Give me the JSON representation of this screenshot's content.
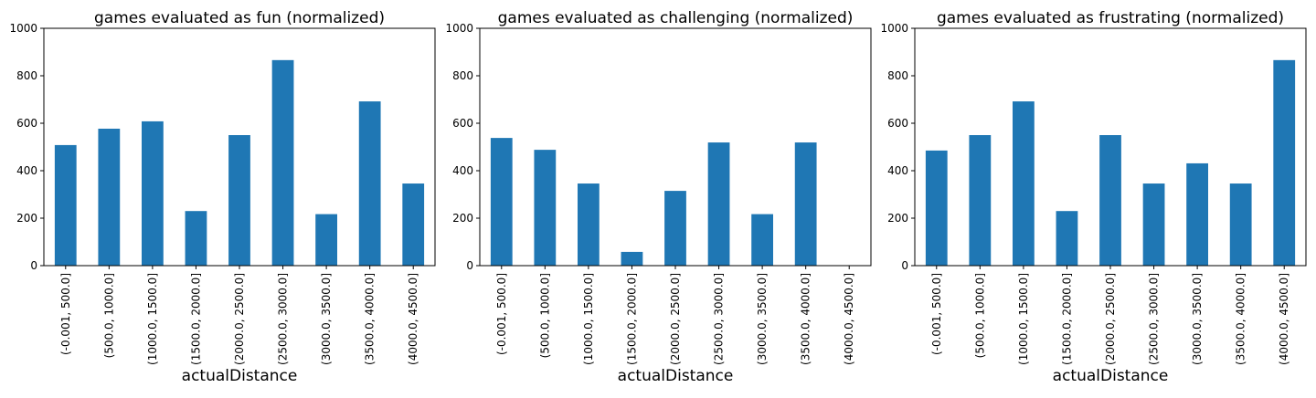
{
  "chart_data": [
    {
      "type": "bar",
      "title": "games evaluated as fun (normalized)",
      "xlabel": "actualDistance",
      "ylabel": "",
      "ylim": [
        0,
        1000
      ],
      "yticks": [
        "0",
        "200",
        "400",
        "600",
        "800",
        "1000"
      ],
      "categories": [
        "(-0.001, 500.0]",
        "(500.0, 1000.0]",
        "(1000.0, 1500.0]",
        "(1500.0, 2000.0]",
        "(2000.0, 2500.0]",
        "(2500.0, 3000.0]",
        "(3000.0, 3500.0]",
        "(3500.0, 4000.0]",
        "(4000.0, 4500.0]"
      ],
      "values": [
        508,
        577,
        608,
        230,
        550,
        866,
        217,
        692,
        346
      ],
      "color": "#1f77b4",
      "grid": false,
      "legend": "none"
    },
    {
      "type": "bar",
      "title": "games evaluated as challenging (normalized)",
      "xlabel": "actualDistance",
      "ylabel": "",
      "ylim": [
        0,
        1000
      ],
      "yticks": [
        "0",
        "200",
        "400",
        "600",
        "800",
        "1000"
      ],
      "categories": [
        "(-0.001, 500.0]",
        "(500.0, 1000.0]",
        "(1000.0, 1500.0]",
        "(1500.0, 2000.0]",
        "(2000.0, 2500.0]",
        "(2500.0, 3000.0]",
        "(3000.0, 3500.0]",
        "(3500.0, 4000.0]",
        "(4000.0, 4500.0]"
      ],
      "values": [
        538,
        488,
        346,
        58,
        315,
        519,
        217,
        519,
        0
      ],
      "color": "#1f77b4",
      "grid": false,
      "legend": "none"
    },
    {
      "type": "bar",
      "title": "games evaluated as frustrating (normalized)",
      "xlabel": "actualDistance",
      "ylabel": "",
      "ylim": [
        0,
        1000
      ],
      "yticks": [
        "0",
        "200",
        "400",
        "600",
        "800",
        "1000"
      ],
      "categories": [
        "(-0.001, 500.0]",
        "(500.0, 1000.0]",
        "(1000.0, 1500.0]",
        "(1500.0, 2000.0]",
        "(2000.0, 2500.0]",
        "(2500.0, 3000.0]",
        "(3000.0, 3500.0]",
        "(3500.0, 4000.0]",
        "(4000.0, 4500.0]"
      ],
      "values": [
        485,
        550,
        692,
        230,
        550,
        346,
        431,
        346,
        866
      ],
      "color": "#1f77b4",
      "grid": false,
      "legend": "none"
    }
  ]
}
